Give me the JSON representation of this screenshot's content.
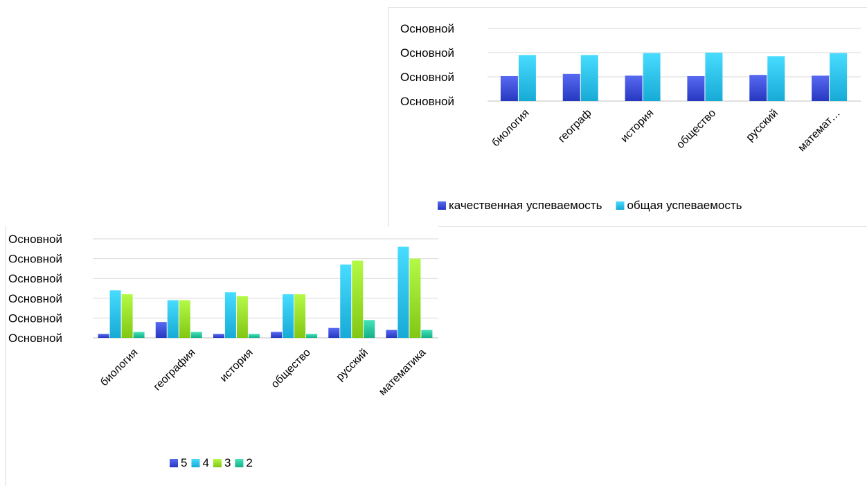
{
  "chart_data": [
    {
      "type": "bar",
      "title": "",
      "xlabel": "",
      "ylabel": "",
      "categories": [
        "биология",
        "географ",
        "история",
        "общество",
        "русский",
        "математ…"
      ],
      "yticks": [
        "Основной",
        "Основной",
        "Основной",
        "Основной"
      ],
      "ylim": [
        0,
        3
      ],
      "grid": true,
      "legend_position": "bottom",
      "series": [
        {
          "name": "качественная успеваемость",
          "color": "#3F51D9",
          "values": [
            1.03,
            1.12,
            1.05,
            1.03,
            1.08,
            1.05
          ]
        },
        {
          "name": "общая успеваемость",
          "color": "#2FC3EF",
          "values": [
            1.9,
            1.9,
            1.98,
            2.0,
            1.85,
            1.98
          ]
        }
      ]
    },
    {
      "type": "bar",
      "title": "",
      "xlabel": "",
      "ylabel": "",
      "categories": [
        "биология",
        "география",
        "история",
        "общество",
        "русский",
        "математика"
      ],
      "yticks": [
        "Основной",
        "Основной",
        "Основной",
        "Основной",
        "Основной",
        "Основной"
      ],
      "ylim": [
        0,
        5
      ],
      "grid": true,
      "legend_position": "bottom",
      "series": [
        {
          "name": "5",
          "color": "#3F51D9",
          "values": [
            0.2,
            0.8,
            0.2,
            0.3,
            0.5,
            0.4
          ]
        },
        {
          "name": "4",
          "color": "#2FC3EF",
          "values": [
            2.4,
            1.9,
            2.3,
            2.2,
            3.7,
            4.6
          ]
        },
        {
          "name": "3",
          "color": "#9BE02C",
          "values": [
            2.2,
            1.9,
            2.1,
            2.2,
            3.9,
            4.0
          ]
        },
        {
          "name": "2",
          "color": "#2DC9A0",
          "values": [
            0.3,
            0.3,
            0.2,
            0.2,
            0.9,
            0.4
          ]
        }
      ]
    }
  ]
}
